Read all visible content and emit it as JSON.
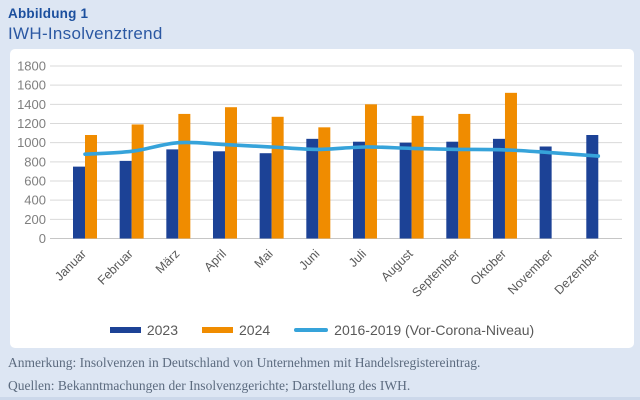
{
  "page": {
    "figure_label": "Abbildung 1",
    "title": "IWH-Insolvenztrend",
    "note": "Anmerkung: Insolvenzen in Deutschland von Unternehmen mit Handelsregistereintrag.",
    "sources": "Quellen: Bekanntmachungen der Insolvenzgerichte; Darstellung des IWH."
  },
  "colors": {
    "background": "#dde6f3",
    "card": "#ffffff",
    "bar_2023": "#1c4296",
    "bar_2024": "#f08c00",
    "trend_line": "#36a3da",
    "gridline": "#d9d9d9",
    "axis_line": "#c6c6c6",
    "tick_label": "#7f7f7f",
    "month_label": "#595959",
    "title_blue": "#1b4f9e"
  },
  "chart_data": {
    "type": "bar",
    "title": "IWH-Insolvenztrend",
    "categories": [
      "Januar",
      "Februar",
      "März",
      "April",
      "Mai",
      "Juni",
      "Juli",
      "August",
      "September",
      "Oktober",
      "November",
      "Dezember"
    ],
    "series": [
      {
        "name": "2023",
        "type": "bar",
        "color": "#1c4296",
        "values": [
          750,
          810,
          930,
          910,
          890,
          1040,
          1010,
          1000,
          1010,
          1040,
          960,
          1080
        ]
      },
      {
        "name": "2024",
        "type": "bar",
        "color": "#f08c00",
        "values": [
          1080,
          1190,
          1300,
          1370,
          1270,
          1160,
          1400,
          1280,
          1300,
          1520,
          null,
          null
        ]
      },
      {
        "name": "2016-2019 (Vor-Corona-Niveau)",
        "type": "line",
        "color": "#36a3da",
        "smoothed": true,
        "values": [
          880,
          910,
          1000,
          980,
          955,
          930,
          955,
          940,
          930,
          925,
          895,
          860
        ]
      }
    ],
    "xlabel": "",
    "ylabel": "",
    "ylim": [
      0,
      1800
    ],
    "ytick_step": 200,
    "grid": true,
    "legend_position": "bottom"
  }
}
